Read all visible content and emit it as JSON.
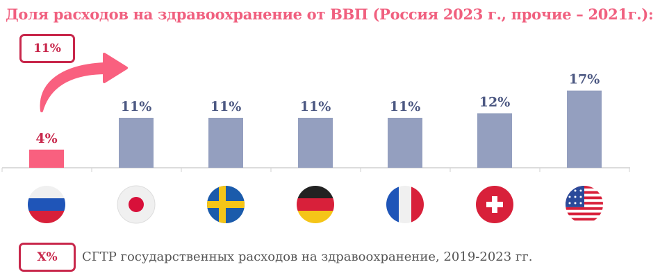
{
  "title": "Доля расходов на здравоохранение от ВВП (Россия 2023 г., прочие – 2021г.):",
  "callout": {
    "label": "11%"
  },
  "legend": {
    "badge": "X%",
    "text": "СГТР государственных расходов на здравоохранение, 2019-2023 гг."
  },
  "colors": {
    "highlight": "#f9607f",
    "bar": "#949fbf",
    "label_highlight": "#c8274b",
    "label": "#4c5882"
  },
  "chart_data": {
    "type": "bar",
    "categories": [
      "Россия",
      "Япония",
      "Швеция",
      "Германия",
      "Франция",
      "Швейцария",
      "США"
    ],
    "flag_icons": [
      "russia-flag-icon",
      "japan-flag-icon",
      "sweden-flag-icon",
      "germany-flag-icon",
      "france-flag-icon",
      "switzerland-flag-icon",
      "usa-flag-icon"
    ],
    "values": [
      4,
      11,
      11,
      11,
      11,
      12,
      17
    ],
    "data_labels": [
      "4%",
      "11%",
      "11%",
      "11%",
      "11%",
      "12%",
      "17%"
    ],
    "ylim": [
      0,
      18
    ],
    "grid": false
  }
}
